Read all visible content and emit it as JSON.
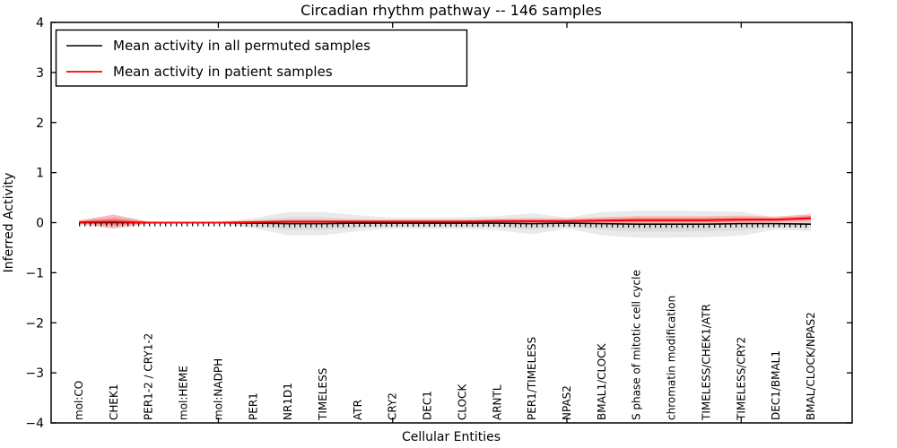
{
  "figure": {
    "title": "Circadian rhythm pathway -- 146 samples",
    "xlabel": "Cellular Entities",
    "ylabel": "Inferred Activity"
  },
  "legend": {
    "items": [
      {
        "label": "Mean activity in all permuted samples",
        "color": "#000000"
      },
      {
        "label": "Mean activity in patient samples",
        "color": "#ff0000"
      }
    ]
  },
  "chart_data": {
    "type": "line",
    "title": "Circadian rhythm pathway -- 146 samples",
    "xlabel": "Cellular Entities",
    "ylabel": "Inferred Activity",
    "ylim": [
      -4,
      4
    ],
    "yticks": [
      4,
      3,
      2,
      1,
      0,
      -1,
      -2,
      -3,
      -4
    ],
    "grid": false,
    "legend_position": "upper left",
    "categories": [
      "mol:CO",
      "CHEK1",
      "PER1-2 / CRY1-2",
      "mol:HEME",
      "mol:NADPH",
      "PER1",
      "NR1D1",
      "TIMELESS",
      "ATR",
      "CRY2",
      "DEC1",
      "CLOCK",
      "ARNTL",
      "PER1/TIMELESS",
      "NPAS2",
      "BMAL1/CLOCK",
      "S phase of mitotic cell cycle",
      "chromatin modification",
      "TIMELESS/CHEK1/ATR",
      "TIMELESS/CRY2",
      "DEC1/BMAL1",
      "BMAL/CLOCK/NPAS2"
    ],
    "x_major_tick_indices": [
      4,
      9,
      14,
      19
    ],
    "series": [
      {
        "name": "Mean activity in all permuted samples",
        "color": "#000000",
        "marker": "tick",
        "values": [
          0,
          0,
          0,
          0,
          0,
          -0.01,
          -0.02,
          -0.02,
          -0.01,
          -0.01,
          -0.01,
          -0.01,
          -0.01,
          -0.02,
          -0.01,
          -0.02,
          -0.03,
          -0.03,
          -0.03,
          -0.02,
          -0.02,
          -0.03
        ]
      },
      {
        "name": "Mean activity in patient samples",
        "color": "#ff0000",
        "marker": "none",
        "values": [
          0.01,
          0.02,
          0,
          0,
          0,
          0.01,
          0.02,
          0.02,
          0.02,
          0.02,
          0.02,
          0.02,
          0.03,
          0.03,
          0.03,
          0.04,
          0.05,
          0.05,
          0.05,
          0.06,
          0.06,
          0.09
        ]
      }
    ],
    "bands": [
      {
        "name": "permuted-samples-envelope",
        "outer_color": "#eaeaea",
        "inner_color": "#dcdcdc",
        "center_series": 0,
        "half_widths": [
          0.05,
          0.08,
          0.02,
          0.015,
          0.015,
          0.1,
          0.23,
          0.23,
          0.16,
          0.11,
          0.11,
          0.12,
          0.14,
          0.21,
          0.11,
          0.23,
          0.27,
          0.27,
          0.26,
          0.24,
          0.12,
          0.14
        ]
      },
      {
        "name": "patient-samples-envelope",
        "outer_color": "#f7bcbc",
        "inner_color": "#ee8f8f",
        "center_series": 1,
        "half_widths": [
          0.035,
          0.14,
          0.02,
          0.015,
          0.015,
          0.035,
          0.05,
          0.05,
          0.04,
          0.04,
          0.04,
          0.04,
          0.05,
          0.06,
          0.05,
          0.07,
          0.08,
          0.08,
          0.08,
          0.08,
          0.06,
          0.08
        ]
      }
    ]
  }
}
